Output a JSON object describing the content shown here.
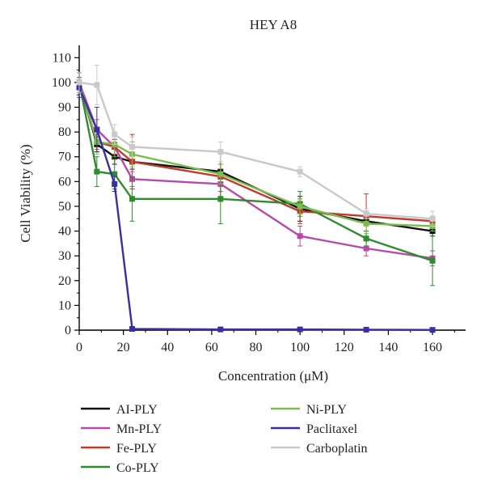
{
  "chart_data": {
    "type": "line",
    "title": "HEY A8",
    "xlabel": "Concentration (μM)",
    "ylabel": "Cell Viability (%)",
    "xlim": [
      0,
      175
    ],
    "ylim": [
      0,
      115
    ],
    "xticks": [
      0,
      20,
      40,
      60,
      80,
      100,
      120,
      140,
      160
    ],
    "yticks": [
      0,
      10,
      20,
      30,
      40,
      50,
      60,
      70,
      80,
      90,
      100,
      110
    ],
    "grid": false,
    "legend_position": "bottom",
    "series": [
      {
        "name": "AI-PLY",
        "color": "#111111",
        "x": [
          0,
          8,
          16,
          24,
          64,
          100,
          130,
          160
        ],
        "y": [
          100,
          75,
          70,
          68,
          64,
          49,
          44,
          40
        ],
        "err": [
          4,
          3,
          3,
          3,
          3,
          5,
          4,
          2
        ]
      },
      {
        "name": "Mn-PLY",
        "color": "#b54aa8",
        "x": [
          0,
          8,
          16,
          24,
          64,
          100,
          130,
          160
        ],
        "y": [
          100,
          81,
          74,
          61,
          59,
          38,
          33,
          29
        ],
        "err": [
          4,
          4,
          3,
          3,
          3,
          4,
          3,
          3
        ]
      },
      {
        "name": "Fe-PLY",
        "color": "#c0392b",
        "x": [
          0,
          8,
          16,
          24,
          64,
          100,
          130,
          160
        ],
        "y": [
          100,
          76,
          74,
          68,
          62,
          48,
          46,
          44
        ],
        "err": [
          4,
          3,
          3,
          11,
          10,
          5,
          9,
          2
        ]
      },
      {
        "name": "Co-PLY",
        "color": "#2e8b2e",
        "x": [
          0,
          8,
          16,
          24,
          64,
          100,
          130,
          160
        ],
        "y": [
          100,
          64,
          63,
          53,
          53,
          51,
          37,
          28
        ],
        "err": [
          4,
          6,
          6,
          9,
          10,
          5,
          3,
          10
        ]
      },
      {
        "name": "Ni-PLY",
        "color": "#7cbc4e",
        "x": [
          0,
          8,
          16,
          24,
          64,
          100,
          130,
          160
        ],
        "y": [
          100,
          76,
          75,
          71,
          63,
          50,
          43,
          42
        ],
        "err": [
          4,
          5,
          5,
          5,
          4,
          3,
          4,
          2
        ]
      },
      {
        "name": "Paclitaxel",
        "color": "#3a2fa0",
        "x": [
          0,
          8,
          16,
          24,
          64,
          100,
          130,
          160
        ],
        "y": [
          98,
          81,
          59,
          0.5,
          0.3,
          0.3,
          0.2,
          0.1
        ],
        "err": [
          4,
          9,
          3,
          0.5,
          0.3,
          0.3,
          0.3,
          0.2
        ]
      },
      {
        "name": "Carboplatin",
        "color": "#c9c9c9",
        "x": [
          0,
          8,
          16,
          24,
          64,
          100,
          130,
          160
        ],
        "y": [
          100,
          99,
          79,
          74,
          72,
          64,
          47,
          45
        ],
        "err": [
          4,
          8,
          4,
          4,
          4,
          2,
          2,
          3
        ]
      }
    ],
    "legend_layout": {
      "columns": [
        [
          "AI-PLY",
          "Mn-PLY",
          "Fe-PLY",
          "Co-PLY"
        ],
        [
          "Ni-PLY",
          "Paclitaxel",
          "Carboplatin"
        ]
      ]
    }
  }
}
